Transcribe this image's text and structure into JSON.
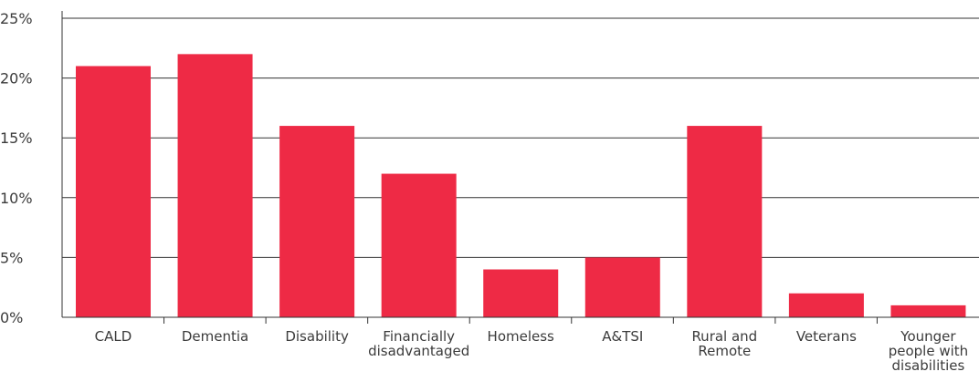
{
  "chart_data": {
    "type": "bar",
    "categories": [
      [
        "CALD"
      ],
      [
        "Dementia"
      ],
      [
        "Disability"
      ],
      [
        "Financially",
        "disadvantaged"
      ],
      [
        "Homeless"
      ],
      [
        "A&TSI"
      ],
      [
        "Rural and",
        "Remote"
      ],
      [
        "Veterans"
      ],
      [
        "Younger",
        "people with",
        "disabilities"
      ]
    ],
    "values": [
      21,
      22,
      16,
      12,
      4,
      5,
      16,
      2,
      1
    ],
    "ylim": [
      0,
      25
    ],
    "yticks": [
      0,
      5,
      10,
      15,
      20,
      25
    ],
    "ytick_labels": [
      "0%",
      "5%",
      "10%",
      "15%",
      "20%",
      "25%"
    ],
    "grid": true,
    "title": "",
    "xlabel": "",
    "ylabel": "",
    "colors": {
      "bar": "#ee2a45",
      "grid": "#333333",
      "axis": "#333333",
      "text": "#3b3b3b"
    }
  }
}
